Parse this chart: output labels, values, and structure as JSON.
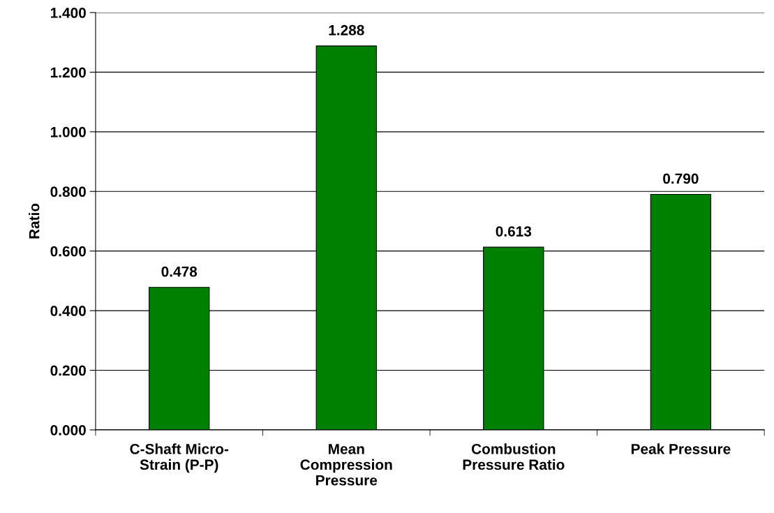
{
  "chart_data": {
    "type": "bar",
    "categories": [
      "C-Shaft Micro-\nStrain (P-P)",
      "Mean\nCompression\nPressure",
      "Combustion\nPressure Ratio",
      "Peak Pressure"
    ],
    "values": [
      0.478,
      1.288,
      0.613,
      0.79
    ],
    "value_labels": [
      "0.478",
      "1.288",
      "0.613",
      "0.790"
    ],
    "color": "#008000",
    "ylabel": "Ratio",
    "ylim": [
      0,
      1.4
    ],
    "yticks": [
      {
        "value": 0,
        "label": "0.000"
      },
      {
        "value": 0.2,
        "label": "0.200"
      },
      {
        "value": 0.4,
        "label": "0.400"
      },
      {
        "value": 0.6,
        "label": "0.600"
      },
      {
        "value": 0.8,
        "label": "0.800"
      },
      {
        "value": 1.0,
        "label": "1.000"
      },
      {
        "value": 1.2,
        "label": "1.200"
      },
      {
        "value": 1.4,
        "label": "1.400"
      }
    ],
    "grid": "y",
    "legend": false
  }
}
